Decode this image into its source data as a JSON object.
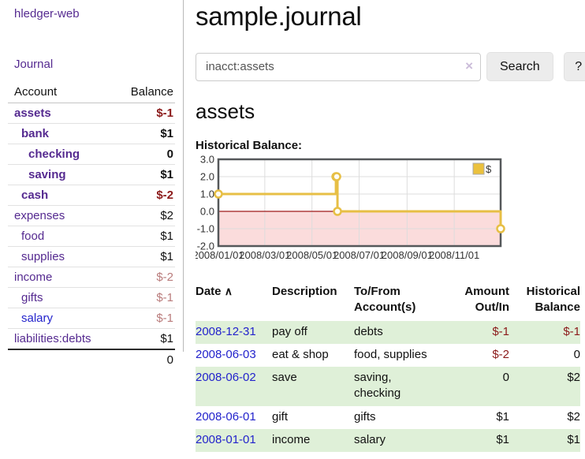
{
  "header": {
    "title": "sample.journal"
  },
  "sidebar": {
    "brand": "hledger-web",
    "journal_link": "Journal",
    "accounts": {
      "col_account": "Account",
      "col_balance": "Balance",
      "rows": [
        {
          "name": "assets",
          "depth": 0,
          "bold": true,
          "blue": false,
          "balance": "$-1",
          "balance_style": "neg-strong"
        },
        {
          "name": "bank",
          "depth": 1,
          "bold": true,
          "blue": false,
          "balance": "$1",
          "balance_style": "pos-strong"
        },
        {
          "name": "checking",
          "depth": 2,
          "bold": true,
          "blue": false,
          "balance": "0",
          "balance_style": "pos-strong"
        },
        {
          "name": "saving",
          "depth": 2,
          "bold": true,
          "blue": false,
          "balance": "$1",
          "balance_style": "pos-strong"
        },
        {
          "name": "cash",
          "depth": 1,
          "bold": true,
          "blue": false,
          "balance": "$-2",
          "balance_style": "neg-strong"
        },
        {
          "name": "expenses",
          "depth": 0,
          "bold": false,
          "blue": false,
          "balance": "$2",
          "balance_style": "pos"
        },
        {
          "name": "food",
          "depth": 1,
          "bold": false,
          "blue": false,
          "balance": "$1",
          "balance_style": "pos"
        },
        {
          "name": "supplies",
          "depth": 1,
          "bold": false,
          "blue": false,
          "balance": "$1",
          "balance_style": "pos"
        },
        {
          "name": "income",
          "depth": 0,
          "bold": false,
          "blue": false,
          "balance": "$-2",
          "balance_style": "neg-muted"
        },
        {
          "name": "gifts",
          "depth": 1,
          "bold": false,
          "blue": false,
          "balance": "$-1",
          "balance_style": "neg-muted"
        },
        {
          "name": "salary",
          "depth": 1,
          "bold": false,
          "blue": true,
          "balance": "$-1",
          "balance_style": "neg-muted"
        },
        {
          "name": "liabilities:debts",
          "depth": 0,
          "bold": false,
          "blue": false,
          "balance": "$1",
          "balance_style": "pos"
        }
      ],
      "total": "0"
    }
  },
  "search": {
    "value": "inacct:assets",
    "clear_icon": "×",
    "button_label": "Search",
    "help_label": "?"
  },
  "main": {
    "account_heading": "assets",
    "chart_label": "Historical Balance:"
  },
  "chart_data": {
    "type": "line",
    "step": true,
    "title": "Historical Balance:",
    "series": [
      {
        "name": "$",
        "points": [
          [
            "2008-01-01",
            1.0
          ],
          [
            "2008-06-01",
            2.0
          ],
          [
            "2008-06-02",
            2.0
          ],
          [
            "2008-06-03",
            0.0
          ],
          [
            "2008-12-31",
            -1.0
          ]
        ]
      }
    ],
    "xlim": [
      "2008-01-01",
      "2008-12-31"
    ],
    "ylim": [
      -2.0,
      3.0
    ],
    "y_ticks": [
      [
        "3.0",
        3
      ],
      [
        "2.0",
        2
      ],
      [
        "1.0",
        1
      ],
      [
        "0.0",
        0
      ],
      [
        "-1.0",
        -1
      ],
      [
        "-2.0",
        -2
      ]
    ],
    "x_ticks": [
      [
        "2008-01-01",
        "2008/01/01"
      ],
      [
        "2008-03-01",
        "2008/03/01"
      ],
      [
        "2008-05-01",
        "2008/05/01"
      ],
      [
        "2008-07-01",
        "2008/07/01"
      ],
      [
        "2008-09-01",
        "2008/09/01"
      ],
      [
        "2008-11-01",
        "2008/11/01"
      ]
    ],
    "legend": [
      {
        "label": "$",
        "color": "#ebc13d"
      }
    ],
    "grid": true,
    "legend_position": "top-right",
    "colors": {
      "line": "#e7bf45",
      "marker_fill": "#fffdf4",
      "negative_region": "#fbdcdc",
      "zero_line": "#9e1a1a",
      "border": "#55585a",
      "grid": "#dddddd",
      "tick_text": "#333333"
    }
  },
  "register": {
    "headers": {
      "date": "Date",
      "sort_icon": "∧",
      "description": "Description",
      "tofrom": "To/From\nAccount(s)",
      "amount": "Amount\nOut/In",
      "balance": "Historical\nBalance"
    },
    "rows": [
      {
        "date": "2008-12-31",
        "description": "pay off",
        "tofrom": "debts",
        "amount": "$-1",
        "amount_neg": true,
        "balance": "$-1",
        "balance_neg": true,
        "green": true
      },
      {
        "date": "2008-06-03",
        "description": "eat & shop",
        "tofrom": "food, supplies",
        "amount": "$-2",
        "amount_neg": true,
        "balance": "0",
        "balance_neg": false,
        "green": false
      },
      {
        "date": "2008-06-02",
        "description": "save",
        "tofrom": "saving,\nchecking",
        "amount": "0",
        "amount_neg": false,
        "balance": "$2",
        "balance_neg": false,
        "green": true
      },
      {
        "date": "2008-06-01",
        "description": "gift",
        "tofrom": "gifts",
        "amount": "$1",
        "amount_neg": false,
        "balance": "$2",
        "balance_neg": false,
        "green": false
      },
      {
        "date": "2008-01-01",
        "description": "income",
        "tofrom": "salary",
        "amount": "$1",
        "amount_neg": false,
        "balance": "$1",
        "balance_neg": false,
        "green": true
      }
    ]
  },
  "theme": {
    "link_purple": "#552a90",
    "link_blue": "#2323cc",
    "neg_strong": "#8b1a1a",
    "neg_muted": "#b97b7b",
    "row_green": "#dff0d8"
  }
}
